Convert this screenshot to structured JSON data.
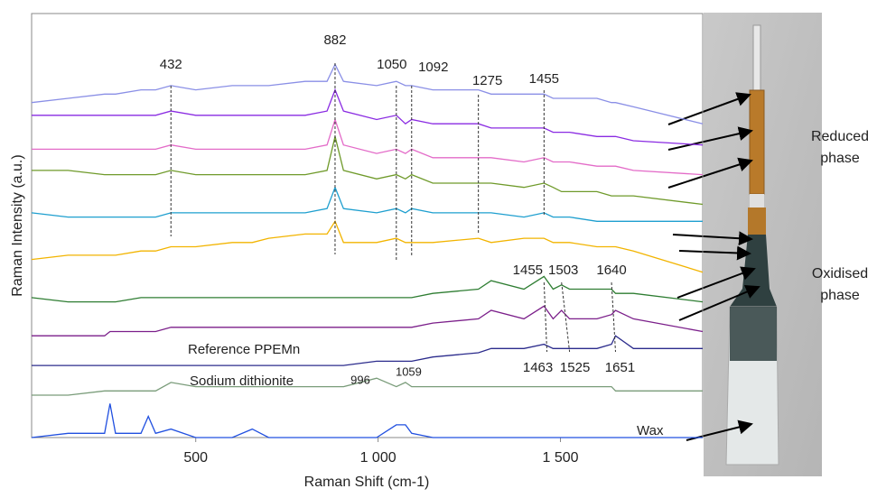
{
  "chart_data": {
    "type": "line",
    "x_label": "Raman Shift (cm-1)",
    "y_label": "Raman Intensity (a.u.)",
    "xlim": [
      50,
      1890
    ],
    "ylim": [
      0,
      100
    ],
    "xticks": [
      500,
      {
        "value": 1000,
        "label": "1 000"
      },
      {
        "value": 1500,
        "label": "1 500"
      }
    ],
    "x": [
      50,
      150,
      250,
      265,
      280,
      350,
      370,
      390,
      432,
      500,
      600,
      655,
      700,
      800,
      860,
      882,
      905,
      996,
      1050,
      1075,
      1092,
      1150,
      1275,
      1310,
      1400,
      1455,
      1480,
      1503,
      1525,
      1600,
      1640,
      1651,
      1700,
      1890
    ],
    "series": [
      {
        "color": "#8a8fe6",
        "values": [
          79,
          80,
          81,
          81,
          81,
          82,
          82,
          82,
          83,
          82,
          83,
          83,
          83,
          84,
          84,
          88,
          84,
          83,
          84,
          83,
          83,
          82,
          82,
          81,
          81,
          81,
          80,
          80,
          80,
          80,
          79,
          79,
          78,
          74
        ]
      },
      {
        "color": "#8a2be2",
        "values": [
          76,
          76,
          76,
          76,
          76,
          76,
          76,
          76,
          77,
          76,
          76,
          76,
          76,
          76,
          77,
          82,
          77,
          75,
          76,
          74,
          75,
          74,
          74,
          73,
          73,
          73,
          72,
          72,
          72,
          71,
          71,
          71,
          70,
          69
        ]
      },
      {
        "color": "#e36bc8",
        "values": [
          68,
          68,
          68,
          68,
          68,
          68,
          68,
          68,
          69,
          68,
          68,
          68,
          68,
          68,
          69,
          75,
          69,
          67,
          68,
          67,
          68,
          66,
          66,
          66,
          65,
          66,
          65,
          65,
          65,
          64,
          64,
          64,
          63,
          62
        ]
      },
      {
        "color": "#6f9a2a",
        "values": [
          63,
          63,
          62,
          62,
          62,
          62,
          62,
          62,
          63,
          62,
          62,
          62,
          62,
          62,
          63,
          71,
          63,
          61,
          62,
          61,
          62,
          60,
          60,
          60,
          59,
          60,
          59,
          58,
          58,
          58,
          57,
          57,
          57,
          55
        ]
      },
      {
        "color": "#1e9fcf",
        "values": [
          53,
          52,
          52,
          52,
          52,
          52,
          52,
          52,
          53,
          53,
          53,
          53,
          53,
          53,
          54,
          59,
          54,
          53,
          54,
          53,
          54,
          53,
          53,
          53,
          52,
          53,
          52,
          52,
          52,
          51,
          51,
          51,
          51,
          51
        ]
      },
      {
        "color": "#f2b400",
        "values": [
          42,
          43,
          43,
          43,
          43,
          44,
          44,
          44,
          45,
          45,
          46,
          46,
          47,
          48,
          48,
          51,
          46,
          46,
          47,
          46,
          46,
          46,
          47,
          46,
          47,
          47,
          46,
          46,
          46,
          45,
          45,
          45,
          44,
          39
        ]
      },
      {
        "color": "#2e7d32",
        "values": [
          33,
          32,
          32,
          32,
          32,
          33,
          33,
          33,
          33,
          33,
          33,
          33,
          33,
          33,
          33,
          33,
          33,
          33,
          33,
          33,
          33,
          34,
          35,
          37,
          35,
          38,
          35,
          36,
          35,
          35,
          35,
          34,
          34,
          32
        ]
      },
      {
        "color": "#7b1f8a",
        "values": [
          24,
          24,
          24,
          25,
          25,
          25,
          25,
          25,
          26,
          26,
          26,
          26,
          26,
          26,
          26,
          26,
          26,
          26,
          26,
          26,
          26,
          27,
          28,
          30,
          28,
          31,
          28,
          30,
          28,
          28,
          29,
          30,
          28,
          25
        ]
      },
      {
        "name": "Reference PPEMn",
        "color": "#2b2b8c",
        "values": [
          17,
          17,
          17,
          17,
          17,
          17,
          17,
          17,
          17,
          17,
          17,
          17,
          17,
          17,
          17,
          17,
          17,
          18,
          18,
          18,
          18,
          19,
          20,
          21,
          21,
          22,
          21,
          21,
          21,
          21,
          22,
          24,
          21,
          21
        ]
      },
      {
        "name": "Sodium dithionite",
        "color": "#7a9c7a",
        "values": [
          10,
          10,
          11,
          11,
          11,
          11,
          11,
          11,
          13,
          12,
          12,
          12,
          12,
          12,
          12,
          12,
          12,
          14,
          12,
          13,
          12,
          12,
          12,
          12,
          12,
          12,
          12,
          12,
          12,
          12,
          12,
          11,
          11,
          11
        ]
      },
      {
        "name": "Wax",
        "color": "#2150e0",
        "values": [
          0,
          1,
          1,
          8,
          1,
          1,
          5,
          1,
          2,
          0,
          0,
          2,
          0,
          0,
          0,
          0,
          0,
          0,
          3,
          3,
          1,
          0,
          0,
          0,
          0,
          0,
          0,
          0,
          0,
          0,
          0,
          0,
          0,
          0
        ]
      }
    ],
    "peak_labels_reduced": [
      432,
      882,
      1050,
      1092,
      1275,
      1455
    ],
    "peak_labels_oxidised_top": [
      1455,
      1503,
      1640
    ],
    "peak_labels_oxidised_bottom": [
      1463,
      1525,
      1651
    ],
    "peak_labels_dithionite": [
      996,
      1059
    ],
    "phase_labels": [
      "Reduced phase",
      "Oxidised phase"
    ]
  }
}
